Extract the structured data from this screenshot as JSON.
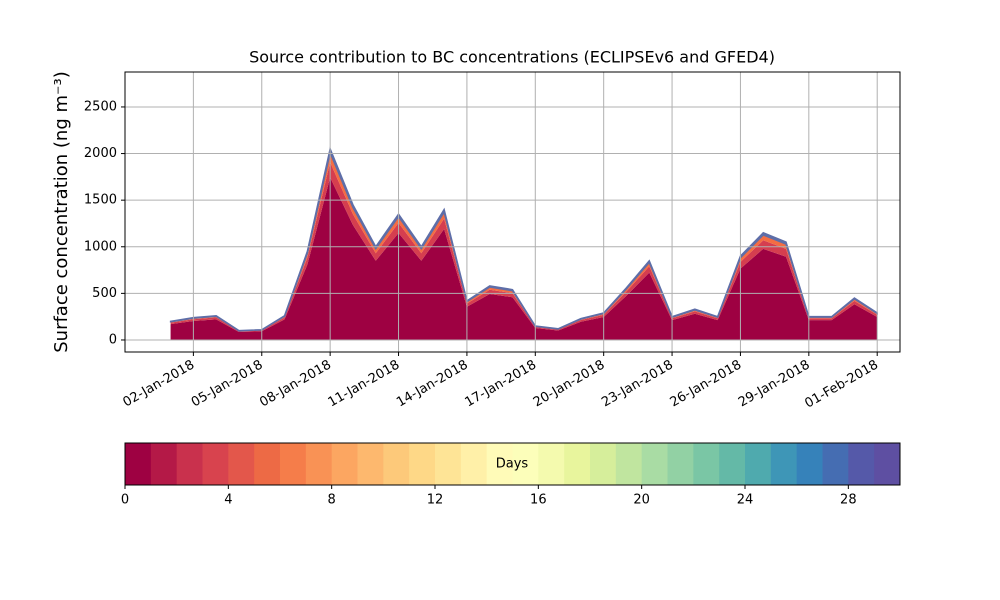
{
  "chart_data": {
    "type": "stacked_area",
    "title": "Source contribution to BC concentrations (ECLIPSEv6 and GFED4)",
    "y_label": "Surface concentration (ng m⁻³)",
    "x": [
      "2018-01-01",
      "2018-01-02",
      "2018-01-03",
      "2018-01-04",
      "2018-01-05",
      "2018-01-06",
      "2018-01-07",
      "2018-01-08",
      "2018-01-09",
      "2018-01-10",
      "2018-01-11",
      "2018-01-12",
      "2018-01-13",
      "2018-01-14",
      "2018-01-15",
      "2018-01-16",
      "2018-01-17",
      "2018-01-18",
      "2018-01-19",
      "2018-01-20",
      "2018-01-21",
      "2018-01-22",
      "2018-01-23",
      "2018-01-24",
      "2018-01-25",
      "2018-01-26",
      "2018-01-27",
      "2018-01-28",
      "2018-01-29",
      "2018-01-30",
      "2018-01-31",
      "2018-02-01"
    ],
    "series": [
      {
        "color": "#9e0142",
        "values": [
          170,
          204,
          221,
          85,
          94,
          221,
          808,
          1743,
          1233,
          850,
          1148,
          850,
          1190,
          357,
          493,
          459,
          128,
          102,
          196,
          247,
          476,
          723,
          213,
          281,
          213,
          765,
          978,
          893,
          213,
          213,
          383,
          247
        ]
      },
      {
        "color": "#d53e4f",
        "values": [
          16,
          19,
          21,
          8,
          9,
          21,
          76,
          164,
          116,
          80,
          108,
          80,
          112,
          34,
          46,
          43,
          12,
          10,
          18,
          23,
          45,
          68,
          20,
          26,
          20,
          72,
          92,
          84,
          20,
          20,
          36,
          23
        ]
      },
      {
        "color": "#f46d43",
        "values": [
          10,
          12,
          13,
          5,
          5,
          13,
          48,
          103,
          73,
          50,
          68,
          50,
          70,
          21,
          29,
          27,
          7,
          6,
          11,
          14,
          28,
          42,
          12,
          16,
          12,
          45,
          57,
          52,
          12,
          12,
          22,
          14
        ]
      },
      {
        "color": "#5e6ea8",
        "values": [
          4,
          5,
          5,
          2,
          2,
          5,
          18,
          40,
          28,
          20,
          26,
          20,
          28,
          8,
          12,
          11,
          3,
          2,
          5,
          6,
          11,
          17,
          5,
          7,
          5,
          18,
          23,
          21,
          5,
          5,
          9,
          6
        ]
      }
    ],
    "xlim": [
      "2017-12-30",
      "2018-02-02"
    ],
    "xticks": [
      {
        "value": "2018-01-02",
        "label": "02-Jan-2018"
      },
      {
        "value": "2018-01-05",
        "label": "05-Jan-2018"
      },
      {
        "value": "2018-01-08",
        "label": "08-Jan-2018"
      },
      {
        "value": "2018-01-11",
        "label": "11-Jan-2018"
      },
      {
        "value": "2018-01-14",
        "label": "14-Jan-2018"
      },
      {
        "value": "2018-01-17",
        "label": "17-Jan-2018"
      },
      {
        "value": "2018-01-20",
        "label": "20-Jan-2018"
      },
      {
        "value": "2018-01-23",
        "label": "23-Jan-2018"
      },
      {
        "value": "2018-01-26",
        "label": "26-Jan-2018"
      },
      {
        "value": "2018-01-29",
        "label": "29-Jan-2018"
      },
      {
        "value": "2018-02-01",
        "label": "01-Feb-2018"
      }
    ],
    "ylim": [
      -129,
      2875
    ],
    "yticks": [
      0,
      500,
      1000,
      1500,
      2000,
      2500
    ],
    "grid": true,
    "colorbar": {
      "label": "Days",
      "lim": [
        0,
        30
      ],
      "ticks": [
        0,
        4,
        8,
        12,
        16,
        20,
        24,
        28
      ],
      "colors": [
        "#9e0142",
        "#b41947",
        "#c9314d",
        "#d8434e",
        "#e3574b",
        "#ed6a45",
        "#f57d4a",
        "#f99255",
        "#fca661",
        "#fdb86e",
        "#fdc97a",
        "#fed887",
        "#fee496",
        "#fff0a8",
        "#fffbb8",
        "#fcfeba",
        "#f4faae",
        "#e8f59d",
        "#d6ee9b",
        "#c0e59f",
        "#a9dca4",
        "#92d1a4",
        "#7ac6a5",
        "#64b9a7",
        "#4faaae",
        "#3e96b7",
        "#3682ba",
        "#456db2",
        "#5559a9",
        "#5e4fa2"
      ]
    }
  }
}
